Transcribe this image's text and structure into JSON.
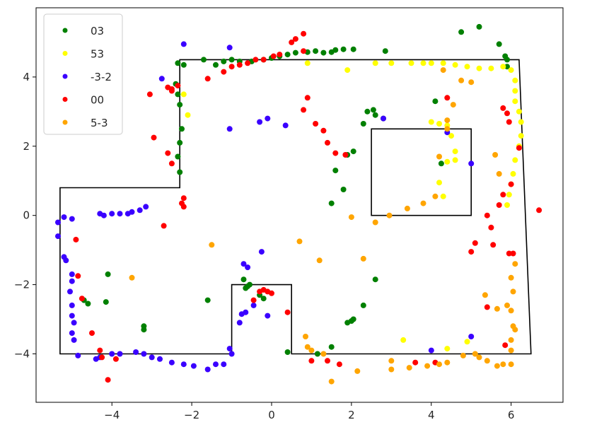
{
  "chart_data": {
    "type": "scatter",
    "title": "",
    "xlabel": "",
    "ylabel": "",
    "xlim": [
      -5.9,
      7.3
    ],
    "ylim": [
      -5.4,
      6.0
    ],
    "grid": false,
    "legend_placement": "top-left",
    "x_ticks": [
      -4,
      -2,
      0,
      2,
      4,
      6
    ],
    "y_ticks": [
      -4,
      -2,
      0,
      2,
      4
    ],
    "x_tick_labels": [
      "−4",
      "−2",
      "0",
      "2",
      "4",
      "6"
    ],
    "y_tick_labels": [
      "−4",
      "−2",
      "0",
      "2",
      "4"
    ],
    "outline": {
      "color": "#000000",
      "polygons": [
        [
          [
            -5.3,
            -4.0
          ],
          [
            -1.0,
            -4.0
          ],
          [
            -1.0,
            -2.0
          ],
          [
            0.5,
            -2.0
          ],
          [
            0.5,
            -4.0
          ],
          [
            6.5,
            -4.0
          ],
          [
            6.2,
            4.5
          ],
          [
            -2.3,
            4.5
          ],
          [
            -2.3,
            0.8
          ],
          [
            -5.3,
            0.8
          ]
        ],
        [
          [
            2.5,
            0.0
          ],
          [
            5.0,
            0.0
          ],
          [
            5.0,
            2.5
          ],
          [
            2.5,
            2.5
          ]
        ]
      ]
    },
    "series": [
      {
        "name": "03",
        "color": "#008000",
        "points": [
          [
            -2.35,
            4.4
          ],
          [
            -2.2,
            4.35
          ],
          [
            -1.7,
            4.5
          ],
          [
            -1.4,
            4.35
          ],
          [
            -1.2,
            4.45
          ],
          [
            -1.0,
            4.5
          ],
          [
            -0.8,
            4.45
          ],
          [
            -0.5,
            4.45
          ],
          [
            -0.2,
            4.5
          ],
          [
            0.0,
            4.55
          ],
          [
            0.2,
            4.6
          ],
          [
            0.4,
            4.65
          ],
          [
            0.6,
            4.7
          ],
          [
            0.9,
            4.72
          ],
          [
            1.1,
            4.75
          ],
          [
            1.3,
            4.7
          ],
          [
            1.5,
            4.72
          ],
          [
            1.6,
            4.78
          ],
          [
            1.8,
            4.8
          ],
          [
            2.05,
            4.8
          ],
          [
            2.85,
            4.75
          ],
          [
            -2.4,
            3.8
          ],
          [
            -2.35,
            3.5
          ],
          [
            -2.3,
            3.2
          ],
          [
            -2.25,
            2.5
          ],
          [
            -2.3,
            2.1
          ],
          [
            -2.35,
            1.7
          ],
          [
            -2.3,
            1.25
          ],
          [
            -4.1,
            -1.7
          ],
          [
            -4.7,
            -2.45
          ],
          [
            -4.6,
            -2.55
          ],
          [
            -4.15,
            -2.5
          ],
          [
            -3.2,
            -3.2
          ],
          [
            -3.2,
            -3.3
          ],
          [
            -1.6,
            -2.45
          ],
          [
            -0.7,
            -1.85
          ],
          [
            -0.6,
            -2.05
          ],
          [
            -0.65,
            -2.1
          ],
          [
            -0.55,
            -2.0
          ],
          [
            -0.3,
            -2.3
          ],
          [
            -0.2,
            -2.4
          ],
          [
            0.4,
            -3.95
          ],
          [
            1.15,
            -4.0
          ],
          [
            1.5,
            -3.8
          ],
          [
            1.6,
            1.3
          ],
          [
            1.8,
            0.75
          ],
          [
            1.5,
            0.35
          ],
          [
            1.9,
            1.75
          ],
          [
            2.05,
            1.85
          ],
          [
            2.3,
            2.65
          ],
          [
            2.4,
            3.0
          ],
          [
            2.55,
            3.05
          ],
          [
            2.6,
            2.9
          ],
          [
            2.8,
            2.8
          ],
          [
            4.1,
            3.3
          ],
          [
            2.3,
            -2.6
          ],
          [
            1.9,
            -3.1
          ],
          [
            2.0,
            -3.05
          ],
          [
            2.05,
            -3.0
          ],
          [
            2.6,
            -1.85
          ],
          [
            4.25,
            1.5
          ],
          [
            4.75,
            5.3
          ],
          [
            5.2,
            5.45
          ],
          [
            5.7,
            4.95
          ],
          [
            5.85,
            4.6
          ],
          [
            5.9,
            4.5
          ],
          [
            5.9,
            4.3
          ]
        ]
      },
      {
        "name": "53",
        "color": "#ffff00",
        "points": [
          [
            -2.2,
            3.5
          ],
          [
            -2.1,
            2.9
          ],
          [
            0.9,
            4.4
          ],
          [
            1.9,
            4.2
          ],
          [
            2.6,
            4.4
          ],
          [
            3.0,
            4.4
          ],
          [
            3.5,
            4.4
          ],
          [
            3.8,
            4.4
          ],
          [
            4.0,
            4.4
          ],
          [
            4.3,
            4.4
          ],
          [
            4.6,
            4.35
          ],
          [
            4.9,
            4.3
          ],
          [
            5.2,
            4.25
          ],
          [
            5.5,
            4.25
          ],
          [
            5.8,
            4.3
          ],
          [
            6.0,
            4.2
          ],
          [
            6.1,
            3.9
          ],
          [
            6.1,
            3.6
          ],
          [
            6.1,
            3.3
          ],
          [
            6.2,
            3.0
          ],
          [
            6.25,
            2.7
          ],
          [
            6.25,
            2.3
          ],
          [
            6.2,
            2.0
          ],
          [
            6.1,
            1.6
          ],
          [
            6.05,
            1.2
          ],
          [
            6.0,
            0.9
          ],
          [
            5.95,
            0.6
          ],
          [
            5.9,
            0.3
          ],
          [
            4.0,
            2.7
          ],
          [
            4.2,
            2.65
          ],
          [
            4.4,
            2.6
          ],
          [
            4.5,
            2.3
          ],
          [
            4.6,
            1.85
          ],
          [
            4.6,
            1.6
          ],
          [
            4.4,
            1.55
          ],
          [
            4.2,
            0.95
          ],
          [
            4.3,
            0.55
          ],
          [
            3.3,
            -3.6
          ],
          [
            4.4,
            -3.85
          ],
          [
            4.9,
            -3.65
          ]
        ]
      },
      {
        "name": "-3-2",
        "color": "#3a00ff",
        "points": [
          [
            -2.2,
            4.95
          ],
          [
            -2.75,
            3.95
          ],
          [
            -1.05,
            4.85
          ],
          [
            -1.05,
            2.5
          ],
          [
            -0.3,
            2.7
          ],
          [
            -0.1,
            2.8
          ],
          [
            0.35,
            2.6
          ],
          [
            2.8,
            2.8
          ],
          [
            4.4,
            2.4
          ],
          [
            5.0,
            1.5
          ],
          [
            -0.25,
            -1.05
          ],
          [
            -5.35,
            -0.2
          ],
          [
            -5.2,
            -0.05
          ],
          [
            -5.0,
            -0.1
          ],
          [
            -5.35,
            -0.6
          ],
          [
            -5.2,
            -1.2
          ],
          [
            -5.15,
            -1.3
          ],
          [
            -5.0,
            -1.7
          ],
          [
            -5.0,
            -1.9
          ],
          [
            -5.05,
            -2.2
          ],
          [
            -5.0,
            -2.6
          ],
          [
            -5.0,
            -2.9
          ],
          [
            -4.95,
            -3.1
          ],
          [
            -5.0,
            -3.4
          ],
          [
            -4.95,
            -3.6
          ],
          [
            -4.85,
            -4.05
          ],
          [
            -4.3,
            0.05
          ],
          [
            -4.2,
            0.0
          ],
          [
            -4.0,
            0.05
          ],
          [
            -3.8,
            0.05
          ],
          [
            -3.6,
            0.05
          ],
          [
            -3.5,
            0.1
          ],
          [
            -3.3,
            0.15
          ],
          [
            -3.15,
            0.25
          ],
          [
            -4.4,
            -4.15
          ],
          [
            -4.3,
            -4.1
          ],
          [
            -4.0,
            -4.0
          ],
          [
            -3.8,
            -4.0
          ],
          [
            -3.4,
            -3.95
          ],
          [
            -3.2,
            -4.0
          ],
          [
            -3.0,
            -4.1
          ],
          [
            -2.8,
            -4.15
          ],
          [
            -2.5,
            -4.25
          ],
          [
            -2.2,
            -4.3
          ],
          [
            -1.95,
            -4.35
          ],
          [
            -1.6,
            -4.45
          ],
          [
            -1.4,
            -4.3
          ],
          [
            -1.2,
            -4.3
          ],
          [
            -1.0,
            -4.0
          ],
          [
            -1.05,
            -3.85
          ],
          [
            -0.8,
            -3.1
          ],
          [
            -0.75,
            -2.85
          ],
          [
            -0.65,
            -2.8
          ],
          [
            -0.45,
            -2.6
          ],
          [
            -0.6,
            -1.5
          ],
          [
            -0.7,
            -1.4
          ],
          [
            -0.1,
            -2.9
          ],
          [
            4.0,
            -3.9
          ],
          [
            5.0,
            -3.5
          ]
        ]
      },
      {
        "name": "00",
        "color": "#ff0000",
        "points": [
          [
            0.5,
            5.0
          ],
          [
            0.6,
            5.1
          ],
          [
            0.8,
            5.25
          ],
          [
            0.8,
            4.75
          ],
          [
            0.2,
            4.65
          ],
          [
            0.05,
            4.6
          ],
          [
            -0.2,
            4.5
          ],
          [
            -0.4,
            4.5
          ],
          [
            -0.6,
            4.4
          ],
          [
            -0.8,
            4.35
          ],
          [
            -1.0,
            4.3
          ],
          [
            -1.2,
            4.15
          ],
          [
            -1.6,
            3.95
          ],
          [
            -2.35,
            3.75
          ],
          [
            -2.5,
            3.65
          ],
          [
            -2.5,
            3.6
          ],
          [
            -2.6,
            3.7
          ],
          [
            -3.05,
            3.5
          ],
          [
            -2.95,
            2.25
          ],
          [
            -2.6,
            1.8
          ],
          [
            -2.5,
            1.5
          ],
          [
            -2.2,
            0.25
          ],
          [
            -2.25,
            0.35
          ],
          [
            -2.2,
            0.5
          ],
          [
            -2.7,
            -0.3
          ],
          [
            0.8,
            3.05
          ],
          [
            0.9,
            3.4
          ],
          [
            1.1,
            2.65
          ],
          [
            1.3,
            2.45
          ],
          [
            1.4,
            2.1
          ],
          [
            1.6,
            1.8
          ],
          [
            1.85,
            1.75
          ],
          [
            -4.9,
            -0.7
          ],
          [
            -4.85,
            -1.75
          ],
          [
            -4.75,
            -2.4
          ],
          [
            -4.5,
            -3.4
          ],
          [
            -4.3,
            -3.9
          ],
          [
            -4.25,
            -4.1
          ],
          [
            -4.1,
            -4.75
          ],
          [
            -3.9,
            -4.15
          ],
          [
            -0.45,
            -2.45
          ],
          [
            -0.3,
            -2.2
          ],
          [
            -0.2,
            -2.15
          ],
          [
            -0.1,
            -2.2
          ],
          [
            0.0,
            -2.25
          ],
          [
            0.4,
            -2.8
          ],
          [
            1.0,
            -4.2
          ],
          [
            1.4,
            -4.2
          ],
          [
            1.7,
            -4.3
          ],
          [
            4.4,
            3.4
          ],
          [
            5.8,
            3.1
          ],
          [
            5.9,
            2.95
          ],
          [
            5.95,
            2.7
          ],
          [
            6.2,
            1.95
          ],
          [
            6.0,
            0.9
          ],
          [
            5.8,
            0.6
          ],
          [
            5.7,
            0.3
          ],
          [
            5.4,
            0.0
          ],
          [
            5.5,
            -0.35
          ],
          [
            5.1,
            -0.8
          ],
          [
            5.0,
            -1.05
          ],
          [
            5.55,
            -0.85
          ],
          [
            5.95,
            -1.1
          ],
          [
            6.05,
            -1.1
          ],
          [
            6.7,
            0.15
          ],
          [
            5.4,
            -2.65
          ],
          [
            5.85,
            -3.75
          ],
          [
            4.1,
            -4.25
          ],
          [
            3.6,
            -4.25
          ]
        ]
      },
      {
        "name": "5-3",
        "color": "#ffa500",
        "points": [
          [
            4.3,
            4.2
          ],
          [
            4.75,
            3.9
          ],
          [
            5.0,
            3.85
          ],
          [
            4.55,
            3.2
          ],
          [
            4.4,
            2.5
          ],
          [
            4.4,
            2.75
          ],
          [
            4.2,
            1.7
          ],
          [
            4.1,
            0.55
          ],
          [
            3.8,
            0.35
          ],
          [
            3.4,
            0.2
          ],
          [
            2.95,
            0.0
          ],
          [
            2.6,
            -0.2
          ],
          [
            2.0,
            -0.05
          ],
          [
            2.3,
            -1.25
          ],
          [
            0.7,
            -0.75
          ],
          [
            1.2,
            -1.3
          ],
          [
            -1.5,
            -0.85
          ],
          [
            -3.5,
            -1.8
          ],
          [
            0.85,
            -3.5
          ],
          [
            0.9,
            -3.8
          ],
          [
            1.0,
            -3.9
          ],
          [
            1.3,
            -4.0
          ],
          [
            1.5,
            -4.8
          ],
          [
            2.15,
            -4.5
          ],
          [
            3.0,
            -4.2
          ],
          [
            3.0,
            -4.45
          ],
          [
            3.45,
            -4.4
          ],
          [
            3.9,
            -4.35
          ],
          [
            4.2,
            -4.3
          ],
          [
            4.4,
            -4.25
          ],
          [
            4.8,
            -4.05
          ],
          [
            5.1,
            -4.0
          ],
          [
            5.2,
            -4.1
          ],
          [
            5.4,
            -4.2
          ],
          [
            5.8,
            -4.3
          ],
          [
            6.0,
            -4.3
          ],
          [
            5.65,
            -4.35
          ],
          [
            5.35,
            -2.3
          ],
          [
            5.65,
            -2.7
          ],
          [
            5.9,
            -2.6
          ],
          [
            6.0,
            -2.75
          ],
          [
            6.05,
            -3.2
          ],
          [
            6.1,
            -3.3
          ],
          [
            6.0,
            -3.6
          ],
          [
            6.0,
            -3.9
          ],
          [
            6.1,
            -1.4
          ],
          [
            6.0,
            -1.8
          ],
          [
            6.05,
            -2.2
          ],
          [
            5.6,
            1.75
          ],
          [
            5.7,
            1.2
          ]
        ]
      }
    ]
  }
}
